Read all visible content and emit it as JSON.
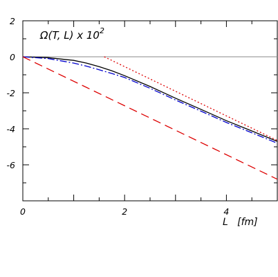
{
  "chart_data": {
    "type": "line",
    "title": "Ω(T, L) x 10",
    "title_superscript": "2",
    "xlabel": "L   [fm]",
    "ylabel": "",
    "xlim": [
      0,
      5
    ],
    "ylim": [
      -8,
      2
    ],
    "x_ticks": [
      0,
      2,
      4
    ],
    "x_tick_labels": [
      "0",
      "2",
      "4"
    ],
    "y_ticks": [
      2,
      0,
      -2,
      -4,
      -6
    ],
    "y_tick_labels": [
      "2",
      "0",
      "-2",
      "-4",
      "-6"
    ],
    "grid": false,
    "legend": "none",
    "series": [
      {
        "color": "#000000",
        "style": "solid",
        "x": [
          0,
          0.5,
          1.0,
          1.25,
          1.5,
          1.75,
          2.0,
          2.5,
          3.0,
          3.5,
          4.0,
          4.5,
          5.0
        ],
        "y": [
          0,
          -0.05,
          -0.2,
          -0.35,
          -0.55,
          -0.78,
          -1.05,
          -1.65,
          -2.3,
          -2.92,
          -3.55,
          -4.12,
          -4.7
        ]
      },
      {
        "color": "#0000cc",
        "style": "dash-dot",
        "x": [
          0,
          0.5,
          1.0,
          1.25,
          1.5,
          1.75,
          2.0,
          2.5,
          3.0,
          3.5,
          4.0,
          4.5,
          5.0
        ],
        "y": [
          0,
          -0.1,
          -0.35,
          -0.52,
          -0.72,
          -0.93,
          -1.15,
          -1.75,
          -2.4,
          -3.02,
          -3.65,
          -4.22,
          -4.8
        ]
      },
      {
        "color": "#dd0000",
        "style": "dashed",
        "x": [
          0,
          5
        ],
        "y": [
          0,
          -6.8
        ]
      },
      {
        "color": "#dd0000",
        "style": "dotted",
        "x": [
          1.6,
          5
        ],
        "y": [
          0,
          -4.65
        ]
      }
    ],
    "reference_line": {
      "y": 0,
      "color": "#888888"
    }
  }
}
